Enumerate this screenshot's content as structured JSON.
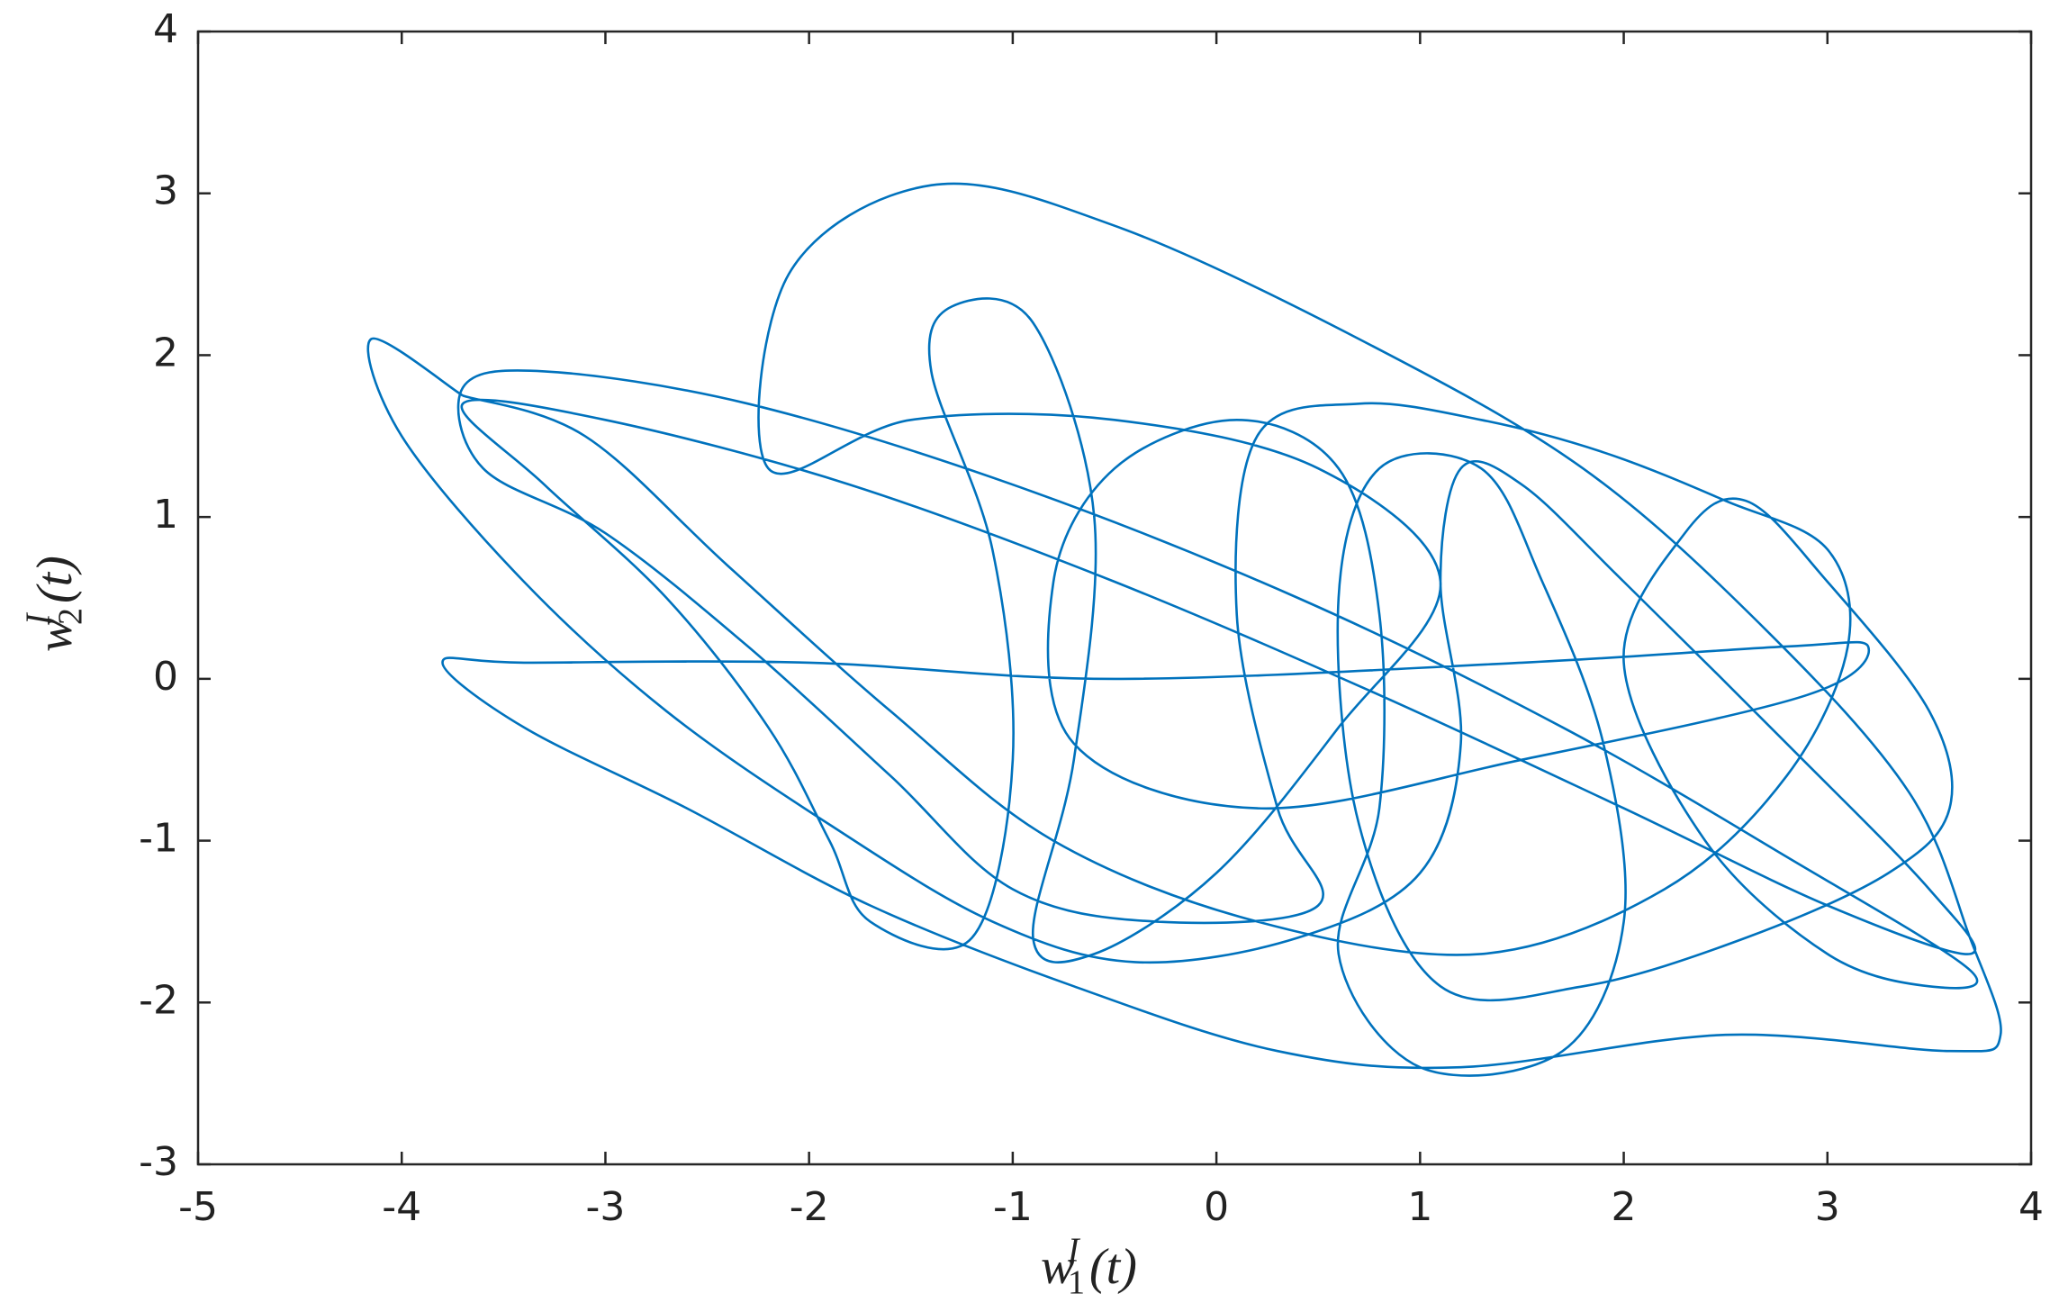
{
  "chart_data": {
    "type": "line",
    "xlabel": {
      "base": "w",
      "sub": "1",
      "sup": "I",
      "arg": "(t)"
    },
    "ylabel": {
      "base": "w",
      "sub": "2",
      "sup": "I",
      "arg": "(t)"
    },
    "xlim": [
      -5,
      4
    ],
    "xticks": [
      -5,
      -4,
      -3,
      -2,
      -1,
      0,
      1,
      2,
      3,
      4
    ],
    "ylim": [
      -3,
      4
    ],
    "yticks": [
      -3,
      -2,
      -1,
      0,
      1,
      2,
      3,
      4
    ],
    "grid": false,
    "series": [
      {
        "color": "#0072bd",
        "x": [
          -3.7,
          -4.15,
          -4.0,
          -3.4,
          -2.7,
          -1.9,
          -1.1,
          -0.4,
          0.4,
          1.0,
          1.2,
          1.1,
          1.2,
          1.5,
          2.0,
          2.8,
          3.5,
          3.7,
          3.0,
          2.0,
          0.8,
          -0.5,
          -1.8,
          -3.0,
          -3.7,
          -3.3,
          -2.7,
          -2.2,
          -1.9,
          -1.7,
          -1.2,
          -1.0,
          -1.1,
          -1.4,
          -1.3,
          -0.9,
          -0.6,
          -0.7,
          -0.9,
          -0.6,
          0.0,
          0.6,
          1.1,
          0.5,
          -0.5,
          -1.5,
          -2.2,
          -2.1,
          -1.4,
          -0.5,
          0.7,
          1.8,
          2.7,
          3.4,
          3.7,
          3.85,
          3.6,
          2.5,
          1.2,
          0.3,
          -0.7,
          -1.7,
          -2.6,
          -3.4,
          -3.8,
          -3.4,
          -2.0,
          -0.5,
          1.5,
          2.8,
          3.2,
          2.9,
          1.5,
          0.2,
          -0.7,
          -0.8,
          -0.5,
          0.1,
          0.6,
          0.8,
          0.8,
          0.6,
          1.0,
          1.7,
          2.0,
          1.9,
          1.6,
          1.3,
          0.8,
          0.6,
          0.7,
          1.1,
          1.8,
          2.6,
          3.3,
          3.6,
          3.5,
          3.0,
          2.6,
          2.3,
          2.0,
          2.4,
          3.0,
          3.5,
          3.7,
          2.8,
          1.7,
          0.4,
          -1.0,
          -2.3,
          -3.3,
          -3.7,
          -3.6,
          -3.0,
          -2.3,
          -1.6,
          -1.0,
          -0.3,
          0.5,
          0.3,
          0.1,
          0.2,
          0.7,
          1.3,
          1.9,
          2.5,
          3.0,
          3.1,
          2.8,
          2.2,
          1.3,
          0.2,
          -0.8,
          -1.6,
          -2.4,
          -3.1,
          -3.7
        ],
        "y": [
          1.75,
          2.1,
          1.5,
          0.6,
          -0.2,
          -0.9,
          -1.5,
          -1.75,
          -1.6,
          -1.2,
          -0.4,
          0.6,
          1.3,
          1.2,
          0.6,
          -0.4,
          -1.3,
          -1.7,
          -1.4,
          -0.8,
          -0.1,
          0.6,
          1.2,
          1.6,
          1.7,
          1.2,
          0.5,
          -0.3,
          -1.0,
          -1.5,
          -1.6,
          -0.5,
          0.8,
          1.9,
          2.3,
          2.2,
          1.0,
          -0.5,
          -1.6,
          -1.7,
          -1.2,
          -0.3,
          0.6,
          1.3,
          1.6,
          1.6,
          1.3,
          2.5,
          3.05,
          2.8,
          2.1,
          1.3,
          0.3,
          -0.7,
          -1.6,
          -2.2,
          -2.3,
          -2.2,
          -2.4,
          -2.3,
          -1.9,
          -1.4,
          -0.8,
          -0.3,
          0.1,
          0.1,
          0.1,
          0.0,
          0.1,
          0.2,
          0.2,
          -0.1,
          -0.5,
          -0.8,
          -0.4,
          0.6,
          1.3,
          1.6,
          1.3,
          0.4,
          -0.8,
          -1.7,
          -2.4,
          -2.3,
          -1.5,
          -0.4,
          0.6,
          1.3,
          1.3,
          0.5,
          -0.9,
          -1.9,
          -1.9,
          -1.6,
          -1.2,
          -0.8,
          -0.2,
          0.6,
          1.1,
          0.9,
          0.1,
          -1.0,
          -1.7,
          -1.9,
          -1.8,
          -1.1,
          -0.3,
          0.5,
          1.2,
          1.7,
          1.9,
          1.8,
          1.3,
          0.9,
          0.2,
          -0.6,
          -1.3,
          -1.5,
          -1.4,
          -0.8,
          0.4,
          1.5,
          1.7,
          1.6,
          1.4,
          1.1,
          0.8,
          0.2,
          -0.6,
          -1.3,
          -1.7,
          -1.5,
          -1.0,
          -0.2,
          0.7,
          1.5,
          1.75
        ]
      }
    ]
  }
}
